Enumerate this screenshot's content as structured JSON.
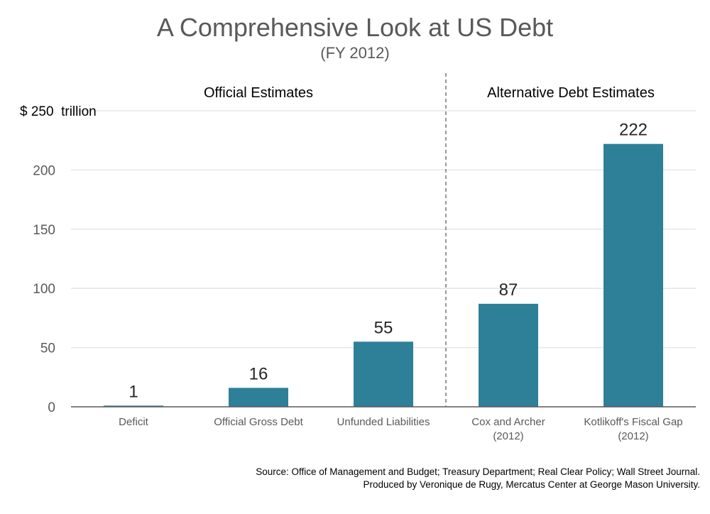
{
  "chart_data": {
    "type": "bar",
    "title": "A Comprehensive Look at US Debt",
    "subtitle": "(FY 2012)",
    "categories": [
      [
        "Deficit"
      ],
      [
        "Official Gross Debt"
      ],
      [
        "Unfunded Liabilities"
      ],
      [
        "Cox and Archer",
        "(2012)"
      ],
      [
        "Kotlikoff's Fiscal Gap",
        "(2012)"
      ]
    ],
    "values": [
      1,
      16,
      55,
      87,
      222
    ],
    "data_labels": [
      "1",
      "16",
      "55",
      "87",
      "222"
    ],
    "ylim": [
      0,
      250
    ],
    "yticks": [
      0,
      50,
      100,
      150,
      200
    ],
    "ytick_labels": [
      "0",
      "50",
      "100",
      "150",
      "200"
    ],
    "y_top_label": "$ 250  trillion",
    "grid": true,
    "groups": [
      {
        "label": "Official Estimates",
        "categories": [
          0,
          1,
          2
        ]
      },
      {
        "label": "Alternative Debt Estimates",
        "categories": [
          3,
          4
        ]
      }
    ],
    "bar_color": "#2e8098"
  },
  "source_lines": [
    "Source: Office of Management and Budget; Treasury Department; Real Clear Policy; Wall Street Journal.",
    "Produced by Veronique de Rugy, Mercatus Center at George Mason University."
  ]
}
